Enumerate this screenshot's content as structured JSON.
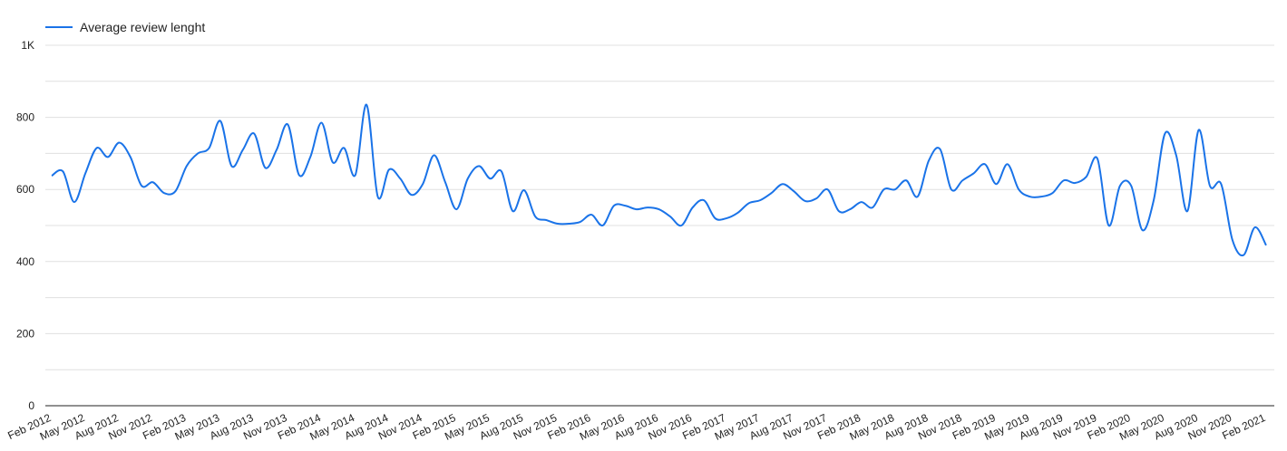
{
  "chart_data": {
    "type": "line",
    "categories": [
      "Feb 2012",
      null,
      null,
      "May 2012",
      null,
      null,
      "Aug 2012",
      null,
      null,
      "Nov 2012",
      null,
      null,
      "Feb 2013",
      null,
      null,
      "May 2013",
      null,
      null,
      "Aug 2013",
      null,
      null,
      "Nov 2013",
      null,
      null,
      "Feb 2014",
      null,
      null,
      "May 2014",
      null,
      null,
      "Aug 2014",
      null,
      null,
      "Nov 2014",
      null,
      null,
      "Feb 2015",
      null,
      null,
      "May 2015",
      null,
      null,
      "Aug 2015",
      null,
      null,
      "Nov 2015",
      null,
      null,
      "Feb 2016",
      null,
      null,
      "May 2016",
      null,
      null,
      "Aug 2016",
      null,
      null,
      "Nov 2016",
      null,
      null,
      "Feb 2017",
      null,
      null,
      "May 2017",
      null,
      null,
      "Aug 2017",
      null,
      null,
      "Nov 2017",
      null,
      null,
      "Feb 2018",
      null,
      null,
      "May 2018",
      null,
      null,
      "Aug 2018",
      null,
      null,
      "Nov 2018",
      null,
      null,
      "Feb 2019",
      null,
      null,
      "May 2019",
      null,
      null,
      "Aug 2019",
      null,
      null,
      "Nov 2019",
      null,
      null,
      "Feb 2020",
      null,
      null,
      "May 2020",
      null,
      null,
      "Aug 2020",
      null,
      null,
      "Nov 2020",
      null,
      null,
      "Feb 2021"
    ],
    "series": [
      {
        "name": "Average review lenght",
        "color": "#1a73e8",
        "values": [
          638,
          650,
          565,
          645,
          715,
          690,
          730,
          690,
          610,
          620,
          590,
          595,
          665,
          700,
          715,
          790,
          665,
          710,
          755,
          660,
          710,
          780,
          640,
          690,
          785,
          675,
          715,
          640,
          835,
          580,
          655,
          630,
          585,
          615,
          695,
          620,
          545,
          630,
          665,
          630,
          650,
          540,
          598,
          525,
          515,
          505,
          505,
          510,
          530,
          500,
          555,
          555,
          545,
          550,
          545,
          525,
          500,
          550,
          570,
          520,
          520,
          535,
          562,
          570,
          590,
          615,
          595,
          568,
          575,
          600,
          540,
          545,
          565,
          550,
          600,
          600,
          625,
          580,
          680,
          712,
          600,
          625,
          645,
          670,
          615,
          670,
          600,
          580,
          580,
          590,
          625,
          618,
          635,
          685,
          500,
          610,
          610,
          487,
          570,
          755,
          695,
          540,
          765,
          610,
          615,
          460,
          418,
          495,
          445
        ]
      }
    ],
    "ylim": [
      0,
      1000
    ],
    "yticks": [
      0,
      200,
      400,
      600,
      800,
      {
        "value": 1000,
        "label": "1K"
      }
    ],
    "yminorticks": [
      100,
      300,
      500,
      700,
      900
    ],
    "grid": true,
    "legend": "top-left"
  }
}
